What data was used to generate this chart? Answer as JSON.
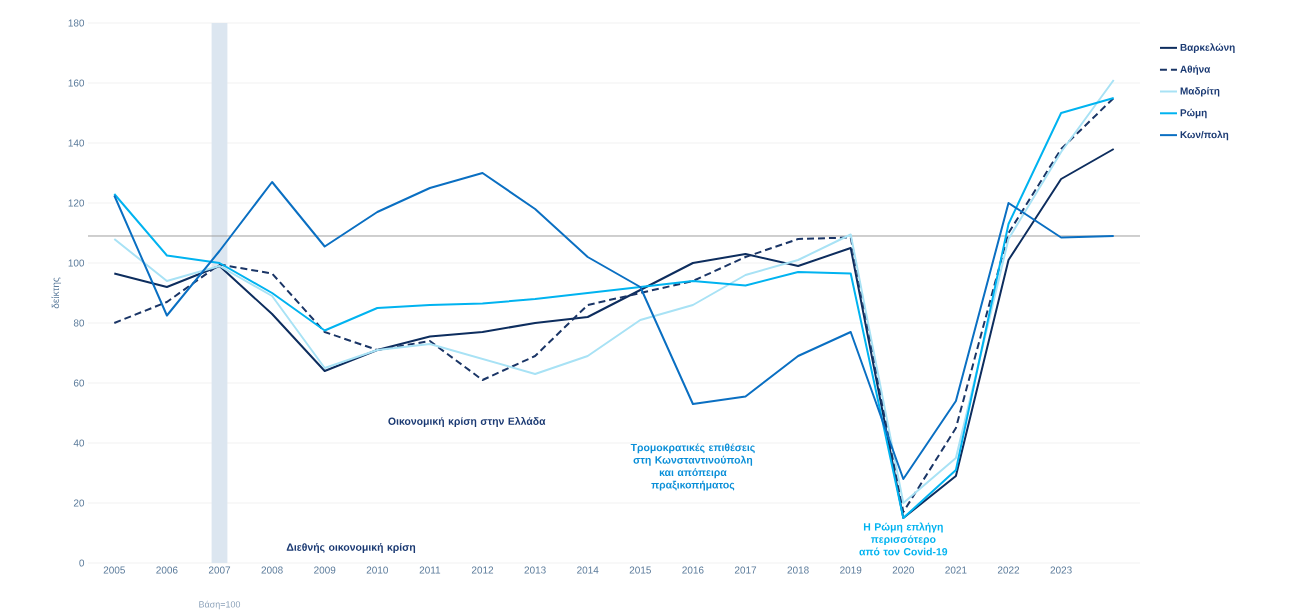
{
  "chart_data": {
    "type": "line",
    "ylabel": "δείκτης",
    "x": [
      2005,
      2006,
      2007,
      2008,
      2009,
      2010,
      2011,
      2012,
      2013,
      2014,
      2015,
      2016,
      2017,
      2018,
      2019,
      2020,
      2021,
      2022,
      2023,
      2024
    ],
    "xlim": [
      2004.5,
      2024.5
    ],
    "xticks": [
      2005,
      2006,
      2007,
      2008,
      2009,
      2010,
      2011,
      2012,
      2013,
      2014,
      2015,
      2016,
      2017,
      2018,
      2019,
      2020,
      2021,
      2022,
      2023
    ],
    "ylim": [
      0,
      180
    ],
    "yticks": [
      0,
      20,
      40,
      60,
      80,
      100,
      120,
      140,
      160,
      180
    ],
    "grid": "y",
    "legend": "right",
    "marker": "none",
    "series": [
      {
        "name": "Βαρκελώνη",
        "color": "#0d2d5e",
        "line_style": "solid",
        "values": [
          96.5,
          92,
          99,
          83,
          64,
          71,
          75.5,
          77,
          80,
          82,
          91,
          100,
          103,
          99,
          105,
          15,
          29,
          101,
          128,
          138
        ]
      },
      {
        "name": "Αθήνα",
        "color": "#1a3566",
        "line_style": "dashed",
        "values": [
          80,
          87,
          99.5,
          96.5,
          77,
          71,
          74,
          61,
          69,
          86,
          90,
          94,
          102,
          108,
          108.5,
          17,
          45,
          110,
          138,
          155
        ]
      },
      {
        "name": "Μαδρίτη",
        "color": "#a8e2f5",
        "line_style": "solid",
        "values": [
          108,
          94,
          99,
          89,
          65,
          71,
          73,
          68,
          63,
          69,
          81,
          86,
          96,
          101,
          109.5,
          20,
          35,
          108,
          137,
          161
        ]
      },
      {
        "name": "Ρώμη",
        "color": "#00b3f0",
        "line_style": "solid",
        "values": [
          123,
          102.5,
          100,
          90,
          77.5,
          85,
          86,
          86.5,
          88,
          90,
          92,
          94,
          92.5,
          97,
          96.5,
          15,
          31,
          113,
          150,
          155
        ]
      },
      {
        "name": "Κων/πολη",
        "color": "#0a6fc2",
        "line_style": "solid",
        "values": [
          122.5,
          82.5,
          104,
          127,
          105.5,
          117,
          125,
          130,
          118,
          102,
          92,
          53,
          55.5,
          69,
          77,
          28,
          54,
          120,
          108.5,
          109
        ]
      }
    ],
    "ref_lines": [
      {
        "axis": "y",
        "value": 109,
        "color": "#a0a0a0"
      }
    ],
    "bands": [
      {
        "axis": "x",
        "from": 2006.85,
        "to": 2007.15,
        "color": "#dce6f0"
      }
    ],
    "annotations": [
      "Οικονομική κρίση στην Ελλάδα",
      "Διεθνής οικονομική κρίση",
      "Τρομοκρατικές επιθέσεις στη Κωνσταντινούπολη και απόπειρα πραξικοπήματος",
      "Η Ρώμη επλήγη περισσότερο από τον Covid-19",
      "Βάση=100"
    ]
  }
}
